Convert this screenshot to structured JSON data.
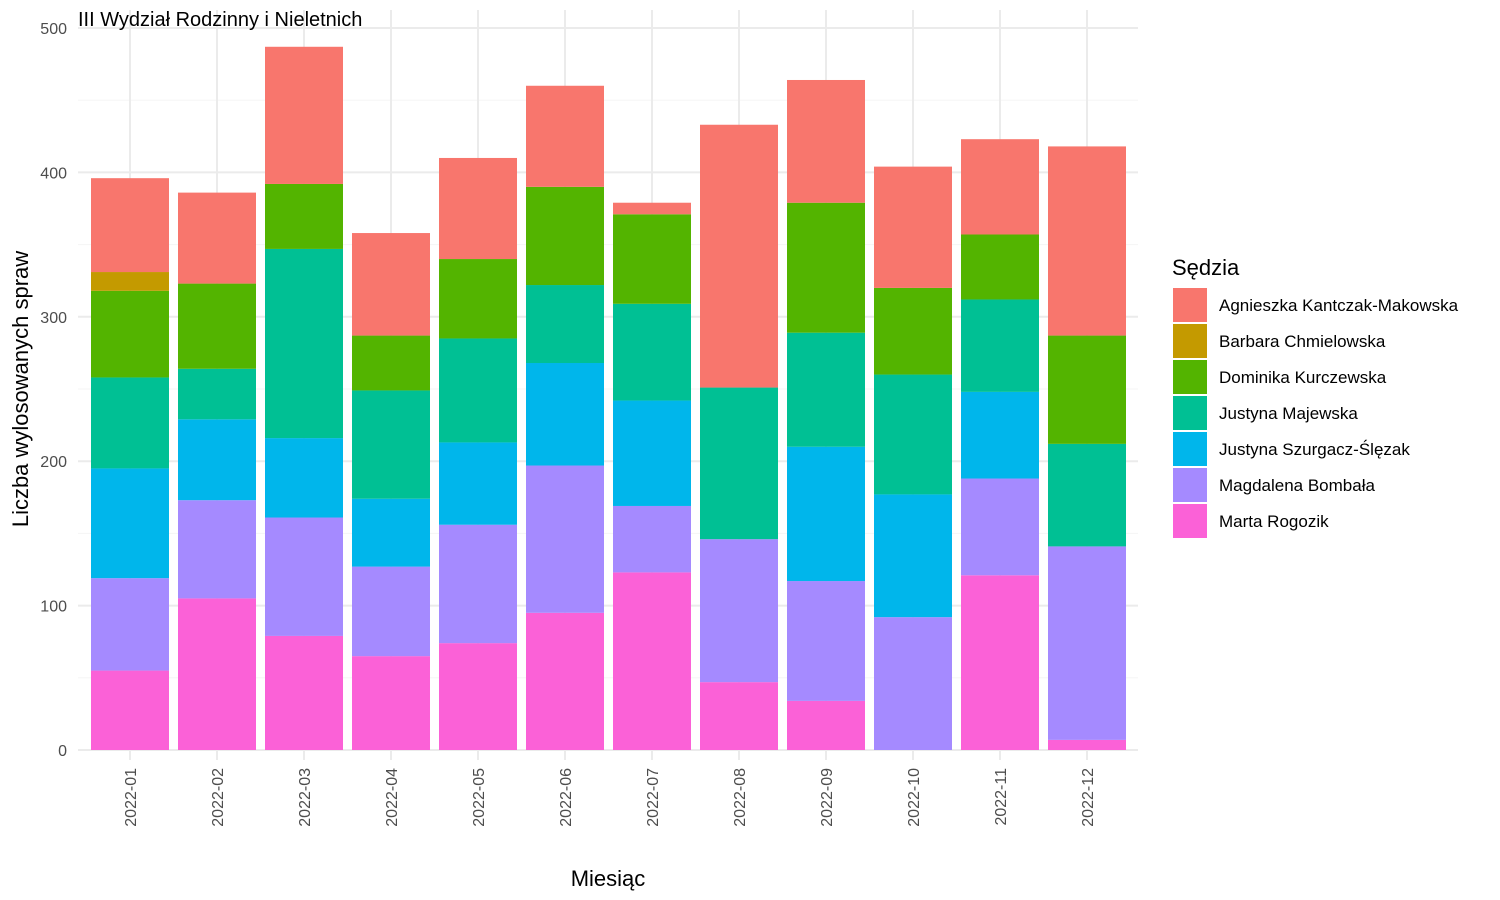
{
  "chart_data": {
    "type": "bar",
    "stacked": true,
    "title": "III Wydział Rodzinny i Nieletnich",
    "xlabel": "Miesiąc",
    "ylabel": "Liczba wylosowanych spraw",
    "ylim": [
      0,
      500
    ],
    "yticks": [
      0,
      100,
      200,
      300,
      400,
      500
    ],
    "grid": true,
    "legend_title": "Sędzia",
    "legend_position": "right",
    "categories": [
      "2022-01",
      "2022-02",
      "2022-03",
      "2022-04",
      "2022-05",
      "2022-06",
      "2022-07",
      "2022-08",
      "2022-09",
      "2022-10",
      "2022-11",
      "2022-12"
    ],
    "series": [
      {
        "name": "Agnieszka Kantczak-Makowska",
        "color": "#F8766D",
        "values": [
          65,
          63,
          95,
          71,
          70,
          70,
          8,
          182,
          85,
          84,
          66,
          131
        ]
      },
      {
        "name": "Barbara Chmielowska",
        "color": "#C49A00",
        "values": [
          13,
          0,
          0,
          0,
          0,
          0,
          0,
          0,
          0,
          0,
          0,
          0
        ]
      },
      {
        "name": "Dominika Kurczewska",
        "color": "#53B400",
        "values": [
          60,
          59,
          45,
          38,
          55,
          68,
          62,
          0,
          90,
          60,
          45,
          75
        ]
      },
      {
        "name": "Justyna Majewska",
        "color": "#00C094",
        "values": [
          63,
          35,
          131,
          75,
          72,
          54,
          67,
          105,
          79,
          83,
          64,
          71
        ]
      },
      {
        "name": "Justyna Szurgacz-Ślęzak",
        "color": "#00B6EB",
        "values": [
          76,
          56,
          55,
          47,
          57,
          71,
          73,
          0,
          93,
          85,
          60,
          0
        ]
      },
      {
        "name": "Magdalena Bombała",
        "color": "#A58AFF",
        "values": [
          64,
          68,
          82,
          62,
          82,
          102,
          46,
          99,
          83,
          92,
          67,
          134
        ]
      },
      {
        "name": "Marta Rogozik",
        "color": "#FB61D7",
        "values": [
          55,
          105,
          79,
          65,
          74,
          95,
          123,
          47,
          34,
          0,
          121,
          7
        ]
      }
    ]
  }
}
